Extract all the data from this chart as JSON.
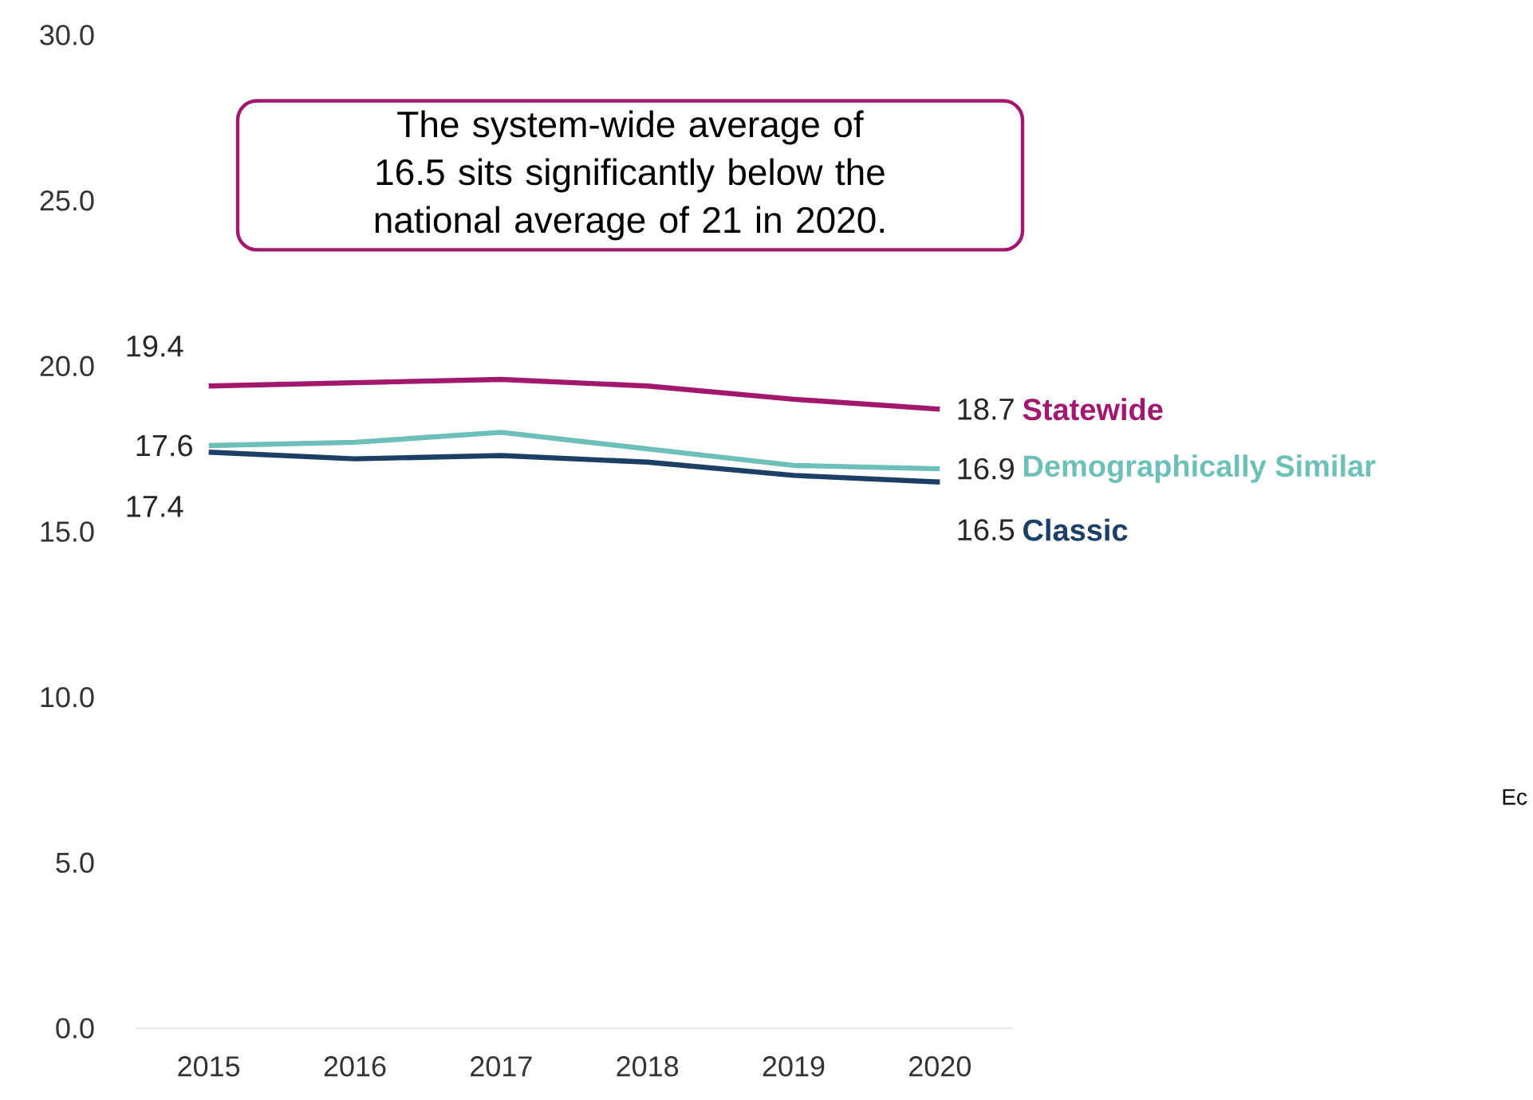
{
  "chart_data": {
    "type": "line",
    "categories": [
      "2015",
      "2016",
      "2017",
      "2018",
      "2019",
      "2020"
    ],
    "series": [
      {
        "name": "Statewide",
        "color": "#a3186f",
        "values": [
          19.4,
          19.5,
          19.6,
          19.4,
          19.0,
          18.7
        ],
        "value_labels": [
          "19.4",
          null,
          null,
          null,
          null,
          "18.7"
        ]
      },
      {
        "name": "Demographically Similar",
        "color": "#6cc0b8",
        "values": [
          17.6,
          17.7,
          18.0,
          17.5,
          17.0,
          16.9
        ],
        "value_labels": [
          "17.6",
          null,
          null,
          null,
          null,
          "16.9"
        ]
      },
      {
        "name": "Classic",
        "color": "#1c3f66",
        "values": [
          17.4,
          17.2,
          17.3,
          17.1,
          16.7,
          16.5
        ],
        "value_labels": [
          "17.4",
          null,
          null,
          null,
          null,
          "16.5"
        ]
      }
    ],
    "ylim": [
      0,
      30
    ],
    "yticks": [
      {
        "value": 0,
        "label": "0.0"
      },
      {
        "value": 5,
        "label": "5.0"
      },
      {
        "value": 10,
        "label": "10.0"
      },
      {
        "value": 15,
        "label": "15.0"
      },
      {
        "value": 20,
        "label": "20.0"
      },
      {
        "value": 25,
        "label": "25.0"
      },
      {
        "value": 30,
        "label": "30.0"
      }
    ],
    "annotations": [
      "The system-wide average of 16.5 sits significantly below the national average of 21 in 2020.",
      "Ec"
    ]
  }
}
